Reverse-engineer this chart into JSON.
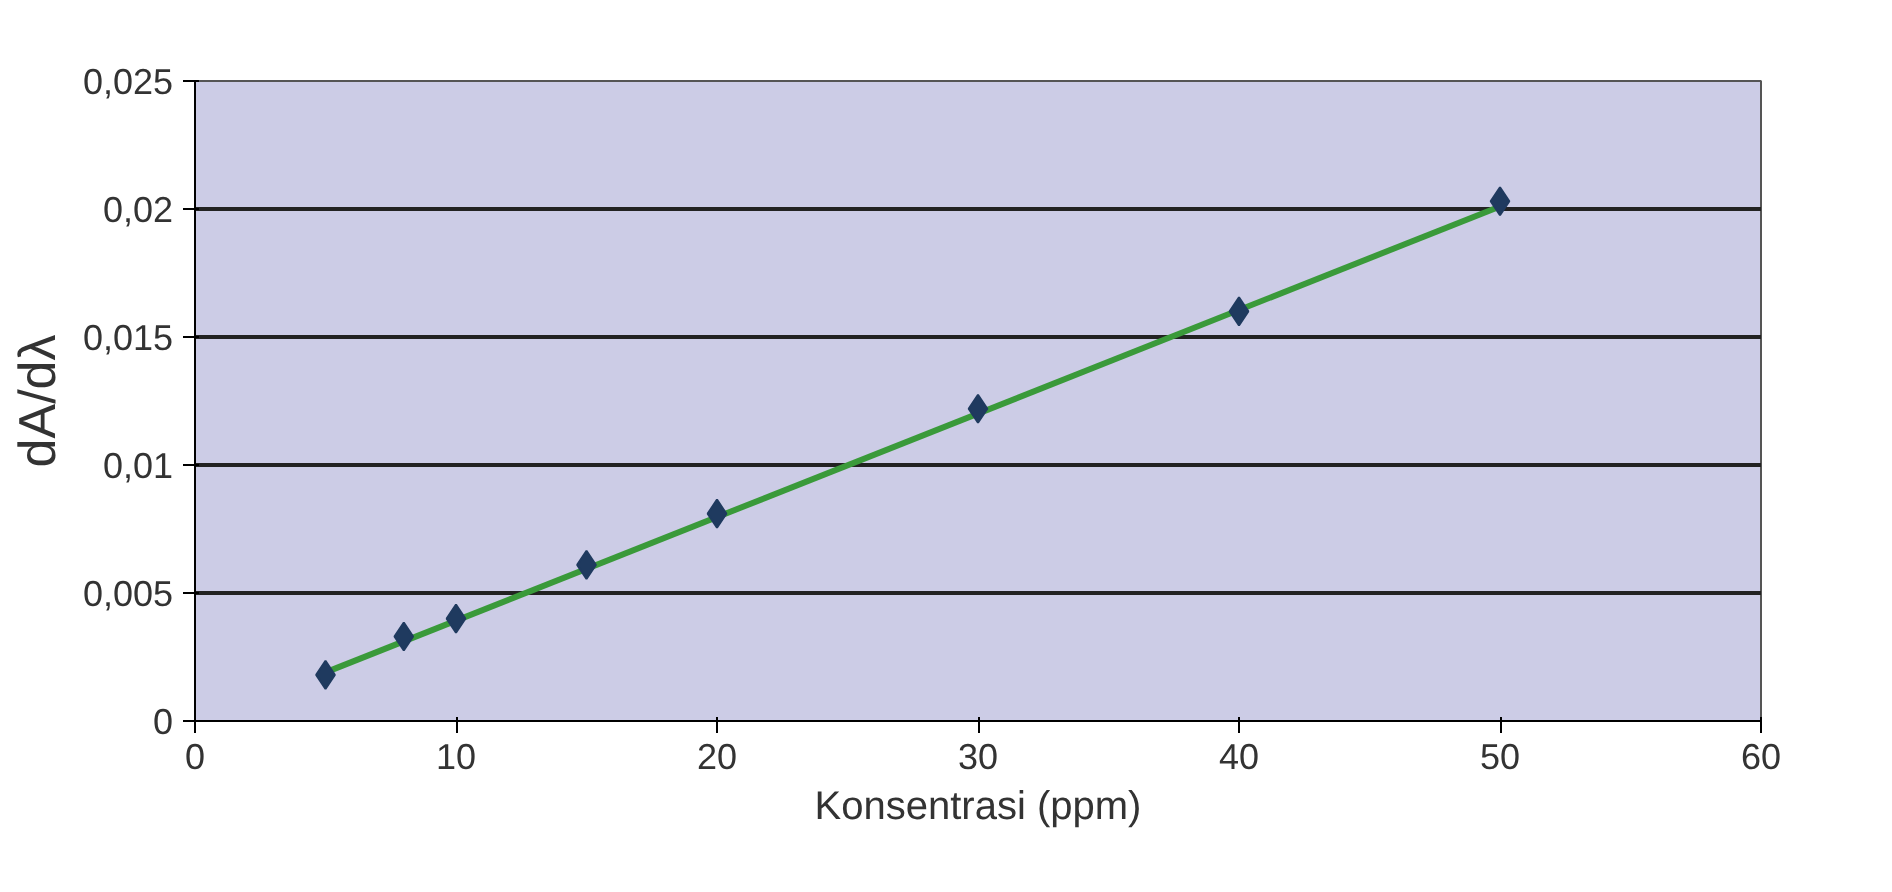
{
  "chart_data": {
    "type": "scatter",
    "xlabel": "Konsentrasi (ppm)",
    "ylabel": "dA/dλ",
    "x": [
      5,
      8,
      10,
      15,
      20,
      30,
      40,
      50
    ],
    "series": [
      {
        "color": "#1f3a5f",
        "marker": "diamond",
        "values": [
          0.0018,
          0.0033,
          0.004,
          0.0061,
          0.0081,
          0.0122,
          0.016,
          0.0203
        ]
      },
      {
        "type": "line",
        "color": "#3a9a3a",
        "x": [
          5,
          50
        ],
        "values": [
          0.0019,
          0.0201
        ]
      }
    ],
    "xlim": [
      0,
      60
    ],
    "xticks": [
      0,
      10,
      20,
      30,
      40,
      50,
      60
    ],
    "ylim": [
      0,
      0.025
    ],
    "yticks": [
      {
        "value": 0,
        "label": "0"
      },
      {
        "value": 0.005,
        "label": "0,005"
      },
      {
        "value": 0.01,
        "label": "0,01"
      },
      {
        "value": 0.015,
        "label": "0,015"
      },
      {
        "value": 0.02,
        "label": "0,02"
      },
      {
        "value": 0.025,
        "label": "0,025"
      }
    ],
    "grid": "y"
  }
}
